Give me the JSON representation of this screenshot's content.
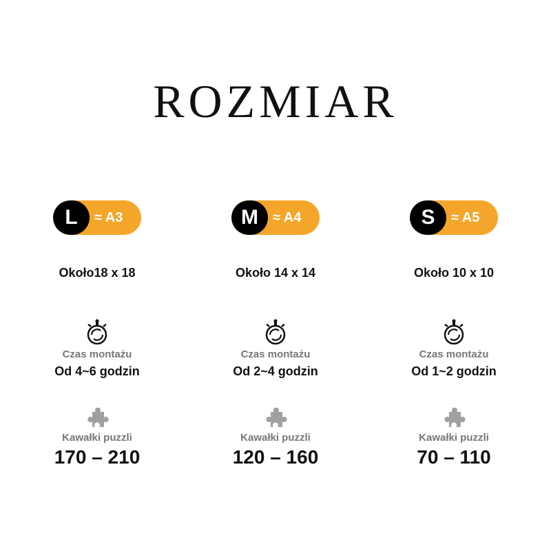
{
  "title": "ROZMIAR",
  "colors": {
    "accent": "#f4a62a",
    "icon_gray": "#a0a0a0"
  },
  "sizes": [
    {
      "size": "L",
      "format": "≈ A3",
      "dimensions": "Około18 x 18",
      "time_label": "Czas montażu",
      "time": "Od 4~6 godzin",
      "pieces_label": "Kawałki puzzli",
      "pieces": "170 – 210"
    },
    {
      "size": "M",
      "format": "≈ A4",
      "dimensions": "Około 14 x 14",
      "time_label": "Czas montażu",
      "time": "Od 2~4 godzin",
      "pieces_label": "Kawałki puzzli",
      "pieces": "120 – 160"
    },
    {
      "size": "S",
      "format": "≈ A5",
      "dimensions": "Około 10 x 10",
      "time_label": "Czas montażu",
      "time": "Od 1~2 godzin",
      "pieces_label": "Kawałki puzzli",
      "pieces": "70 – 110"
    }
  ]
}
